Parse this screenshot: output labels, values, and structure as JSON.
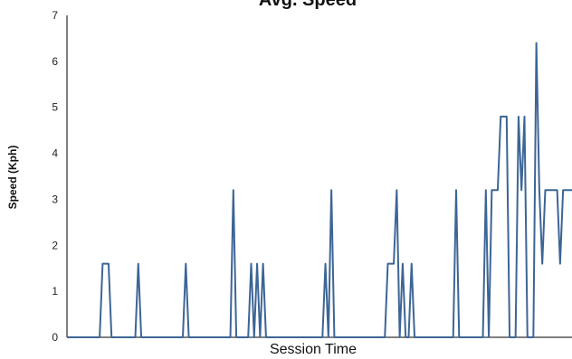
{
  "chart_data": {
    "type": "line",
    "title": "Avg. Speed",
    "xlabel": "Session Time",
    "ylabel": "Speed (Kph)",
    "ylim": [
      0,
      7
    ],
    "yticks": [
      "0",
      "1",
      "2",
      "3",
      "4",
      "5",
      "6",
      "7"
    ],
    "grid": false,
    "legend": "none",
    "colors": {
      "line": "#3d6595",
      "axis": "#000000"
    },
    "series": [
      {
        "values": [
          0,
          0,
          0,
          0,
          0,
          0,
          0,
          0,
          0,
          0,
          0,
          0,
          1.6,
          1.6,
          1.6,
          0,
          0,
          0,
          0,
          0,
          0,
          0,
          0,
          0,
          1.6,
          0,
          0,
          0,
          0,
          0,
          0,
          0,
          0,
          0,
          0,
          0,
          0,
          0,
          0,
          0,
          1.6,
          0,
          0,
          0,
          0,
          0,
          0,
          0,
          0,
          0,
          0,
          0,
          0,
          0,
          0,
          0,
          3.2,
          0,
          0,
          0,
          0,
          0,
          1.6,
          0,
          1.6,
          0,
          1.6,
          0,
          0,
          0,
          0,
          0,
          0,
          0,
          0,
          0,
          0,
          0,
          0,
          0,
          0,
          0,
          0,
          0,
          0,
          0,
          0,
          1.6,
          0,
          3.2,
          0,
          0,
          0,
          0,
          0,
          0,
          0,
          0,
          0,
          0,
          0,
          0,
          0,
          0,
          0,
          0,
          0,
          0,
          1.6,
          1.6,
          1.6,
          3.2,
          0,
          1.6,
          0,
          0,
          1.6,
          0,
          0,
          0,
          0,
          0,
          0,
          0,
          0,
          0,
          0,
          0,
          0,
          0,
          0,
          3.2,
          0,
          0,
          0,
          0,
          0,
          0,
          0,
          0,
          0,
          3.2,
          0,
          3.2,
          3.2,
          3.2,
          4.8,
          4.8,
          4.8,
          0,
          0,
          0,
          4.8,
          3.2,
          4.8,
          0,
          0,
          0,
          6.4,
          3.2,
          1.6,
          3.2,
          3.2,
          3.2,
          3.2,
          3.2,
          1.6,
          3.2,
          3.2,
          3.2,
          3.2
        ]
      }
    ]
  }
}
